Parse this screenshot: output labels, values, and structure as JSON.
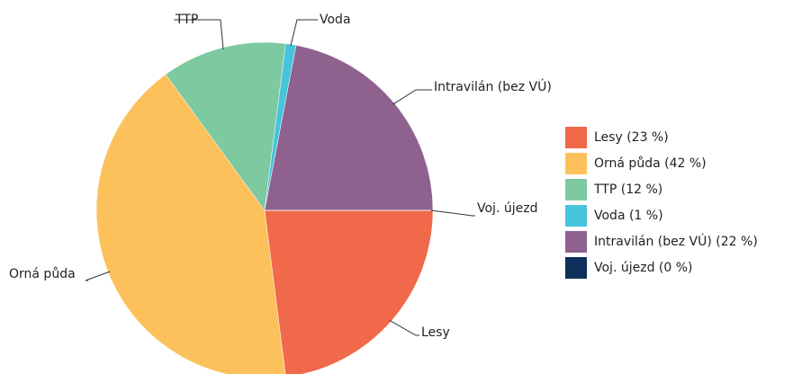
{
  "chart_data": {
    "type": "pie",
    "categories": [
      "Lesy",
      "Orná půda",
      "TTP",
      "Voda",
      "Intravilán (bez VÚ)",
      "Voj. újezd"
    ],
    "values": [
      23,
      42,
      12,
      1,
      22,
      0
    ],
    "legend_labels": [
      "Lesy (23 %)",
      "Orná půda (42 %)",
      "TTP (12 %)",
      "Voda (1 %)",
      "Intravilán (bez VÚ) (22 %)",
      "Voj. újezd (0 %)"
    ],
    "colors": [
      "#f0694a",
      "#fdc15c",
      "#7dc9a0",
      "#46c4dc",
      "#8e618e",
      "#0d2f5a"
    ],
    "legend": "right"
  }
}
